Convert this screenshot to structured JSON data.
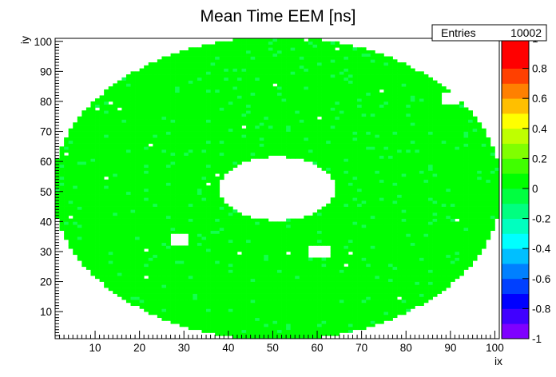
{
  "chart_data": {
    "type": "heatmap",
    "title": "Mean Time EEM [ns]",
    "xlabel": "ix",
    "ylabel": "iy",
    "xlim": [
      1,
      101
    ],
    "ylim": [
      1,
      101
    ],
    "x_ticks": [
      10,
      20,
      30,
      40,
      50,
      60,
      70,
      80,
      90,
      100
    ],
    "y_ticks": [
      10,
      20,
      30,
      40,
      50,
      60,
      70,
      80,
      90,
      100
    ],
    "stats_box": {
      "label": "Entries",
      "value": "10002"
    },
    "colorbar": {
      "range": [
        -1,
        1
      ],
      "ticks": [
        "1",
        "0.8",
        "0.6",
        "0.4",
        "0.2",
        "0",
        "-0.2",
        "-0.4",
        "-0.6",
        "-0.8",
        "-1"
      ],
      "palette": [
        "#7f00ff",
        "#4000ff",
        "#0000ff",
        "#0040ff",
        "#0080ff",
        "#00bfff",
        "#00ffff",
        "#00ffbf",
        "#00ff80",
        "#00ff40",
        "#00ff00",
        "#40ff00",
        "#80ff00",
        "#bfff00",
        "#ffff00",
        "#ffbf00",
        "#ff8000",
        "#ff4000",
        "#ff0000",
        "#ff0000"
      ]
    },
    "cell_fill_value": 0.0,
    "cell_color": "#00ff00",
    "speckle_color": "#12ff50",
    "outer_radius": 50.5,
    "inner_radius": 11.8,
    "inner_center": [
      51,
      51
    ],
    "missing_blocks": [
      {
        "ix": [
          27,
          30
        ],
        "iy": [
          32,
          35
        ]
      },
      {
        "ix": [
          58,
          62
        ],
        "iy": [
          28,
          31
        ]
      },
      {
        "ix": [
          88,
          91
        ],
        "iy": [
          79,
          82
        ]
      }
    ]
  }
}
